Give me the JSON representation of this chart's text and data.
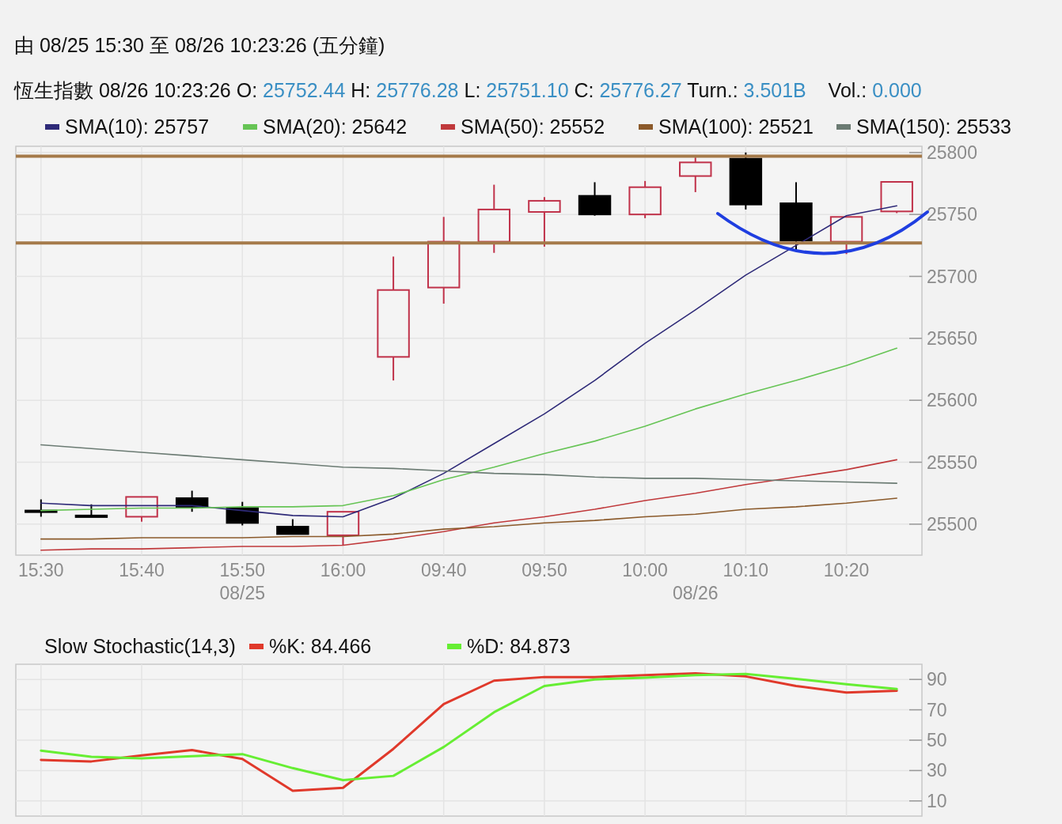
{
  "chart_data": [
    {
      "type": "candlestick",
      "title": "由 08/25 15:30 至 08/26 10:23:26 (五分鐘)",
      "subtitle": "恆生指數 08/26 10:23:26 O: 25752.44 H: 25776.28 L: 25751.10 C: 25776.27 Turn.: 3.501B    Vol.: 0.000",
      "categories": [
        "15:30",
        null,
        "15:40",
        null,
        "15:50",
        null,
        "16:00",
        null,
        "09:40",
        null,
        "09:50",
        null,
        "10:00",
        null,
        "10:10",
        null,
        "10:20",
        null
      ],
      "ohlc": [
        [
          25511,
          25520,
          25506,
          25510
        ],
        [
          25507,
          25516,
          25506,
          25506
        ],
        [
          25506,
          25522,
          25502,
          25522
        ],
        [
          25521,
          25527,
          25510,
          25514
        ],
        [
          25513,
          25518,
          25499,
          25501
        ],
        [
          25498,
          25504,
          25492,
          25492
        ],
        [
          25491,
          25510,
          25483,
          25510
        ],
        [
          25635,
          25716,
          25616,
          25689
        ],
        [
          25691,
          25748,
          25678,
          25728
        ],
        [
          25728,
          25774,
          25719,
          25754
        ],
        [
          25752,
          25764,
          25724,
          25761
        ],
        [
          25765,
          25776,
          25749,
          25750
        ],
        [
          25750,
          25777,
          25747,
          25772
        ],
        [
          25781,
          25796,
          25768,
          25792
        ],
        [
          25795,
          25800,
          25754,
          25758
        ],
        [
          25759,
          25776,
          25721,
          25729
        ],
        [
          25728,
          25748,
          25718,
          25748
        ],
        [
          25752.44,
          25776.28,
          25751.1,
          25776.27
        ]
      ],
      "series": [
        {
          "name": "SMA(10): 25757",
          "type": "line",
          "color": "#2e2a78",
          "values": [
            25517,
            25515,
            25515,
            25515,
            25511,
            25507,
            25506,
            25521,
            25541,
            25565,
            25589,
            25616,
            25646,
            25673,
            25701,
            25725,
            25749,
            25757
          ]
        },
        {
          "name": "SMA(20): 25642",
          "type": "line",
          "color": "#66c455",
          "values": [
            25511,
            25512,
            25513,
            25513,
            25514,
            25514,
            25515,
            25523,
            25536,
            25546,
            25557,
            25567,
            25579,
            25593,
            25605,
            25616,
            25628,
            25642
          ]
        },
        {
          "name": "SMA(50): 25552",
          "type": "line",
          "color": "#c0393b",
          "values": [
            25479,
            25480,
            25480,
            25481,
            25482,
            25482,
            25483,
            25488,
            25494,
            25501,
            25506,
            25512,
            25519,
            25525,
            25532,
            25538,
            25544,
            25552
          ]
        },
        {
          "name": "SMA(100): 25521",
          "type": "line",
          "color": "#8b5a2b",
          "values": [
            25488,
            25488,
            25489,
            25489,
            25489,
            25490,
            25490,
            25492,
            25496,
            25498,
            25501,
            25503,
            25506,
            25508,
            25512,
            25514,
            25517,
            25521
          ]
        },
        {
          "name": "SMA(150): 25533",
          "type": "line",
          "color": "#6b7b73",
          "values": [
            25564,
            25561,
            25558,
            25555,
            25552,
            25549,
            25546,
            25545,
            25543,
            25541,
            25540,
            25538,
            25537,
            25537,
            25536,
            25535,
            25534,
            25533
          ]
        }
      ],
      "ref_lines": [
        {
          "axis": "y",
          "value": 25797,
          "color": "#a57a4a"
        },
        {
          "axis": "y",
          "value": 25727,
          "color": "#a57a4a"
        }
      ],
      "annotations": [
        "08/25",
        "08/26"
      ],
      "ylim": [
        25475,
        25805
      ],
      "yticks": [
        25500,
        25550,
        25600,
        25650,
        25700,
        25750,
        25800
      ],
      "grid": true,
      "legend": "top"
    },
    {
      "type": "line",
      "title": "Slow Stochastic(14,3)",
      "categories": [
        null,
        null,
        null,
        null,
        null,
        null,
        null,
        null,
        null,
        null,
        null,
        null,
        null,
        null,
        null,
        null,
        null,
        null
      ],
      "series": [
        {
          "name": "%K: 84.466",
          "color": "#e0392b",
          "values": [
            37,
            36,
            40,
            43.5,
            37.6,
            16.7,
            18.6,
            44.3,
            73.8,
            89.2,
            91.6,
            91.6,
            92.8,
            94,
            92,
            85.7,
            81.4,
            82.6
          ]
        },
        {
          "name": "%D: 84.873",
          "color": "#66ee33",
          "values": [
            43.1,
            39.1,
            38,
            39.5,
            40.8,
            31.6,
            23.7,
            26.5,
            45.5,
            68.4,
            85.7,
            90,
            91.2,
            92.8,
            93.6,
            90.4,
            86.9,
            83.7
          ]
        }
      ],
      "ylim": [
        0,
        100
      ],
      "yticks": [
        10,
        30,
        50,
        70,
        90
      ],
      "grid": true,
      "legend": "top",
      "tick_labels": "y"
    }
  ]
}
